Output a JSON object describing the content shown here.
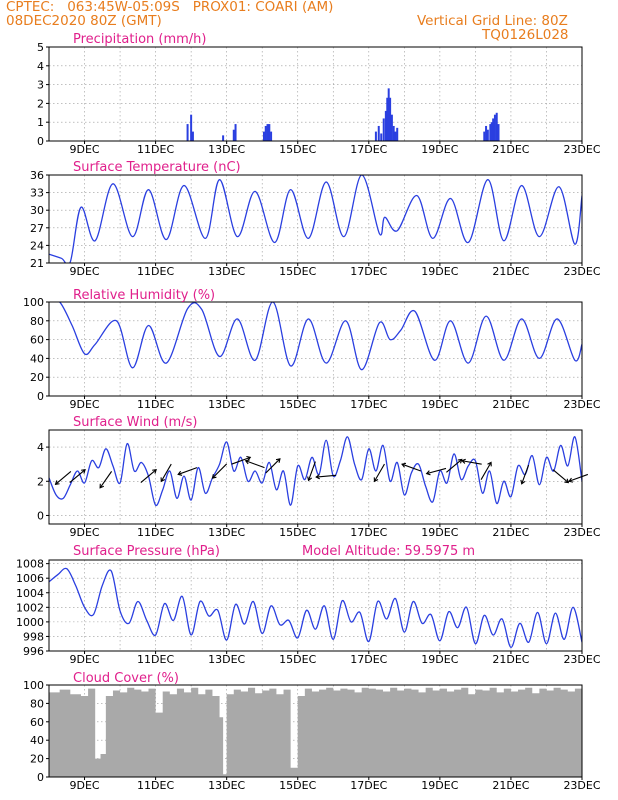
{
  "header": {
    "line1": "CPTEC:   063:45W-05:09S   PROX01: COARI (AM)",
    "line2": "08DEC2020 80Z (GMT)",
    "grid_note": "Vertical Grid Line: 80Z",
    "code": "TQ0126L028"
  },
  "x_ticks": [
    "9DEC",
    "11DEC",
    "13DEC",
    "15DEC",
    "17DEC",
    "19DEC",
    "21DEC",
    "23DEC"
  ],
  "colors": {
    "series": "#2a3fe0",
    "title": "#e0208c",
    "header": "#e87d1e",
    "cloud": "#a9a9a9",
    "wind_arrow": "#000000"
  },
  "chart_data": [
    {
      "id": "precipitation",
      "type": "bar",
      "title": "Precipitation (mm/h)",
      "ylim": [
        0,
        5
      ],
      "yticks": [
        0,
        1,
        2,
        3,
        4,
        5
      ],
      "x_range_days": [
        8.0,
        23.0
      ],
      "values": [
        [
          11.9,
          0.9
        ],
        [
          12.0,
          1.4
        ],
        [
          12.05,
          0.5
        ],
        [
          12.9,
          0.3
        ],
        [
          13.2,
          0.6
        ],
        [
          13.25,
          0.9
        ],
        [
          14.05,
          0.5
        ],
        [
          14.1,
          0.8
        ],
        [
          14.15,
          0.9
        ],
        [
          14.2,
          0.9
        ],
        [
          14.25,
          0.5
        ],
        [
          17.2,
          0.5
        ],
        [
          17.28,
          0.8
        ],
        [
          17.35,
          0.4
        ],
        [
          17.42,
          1.2
        ],
        [
          17.48,
          1.6
        ],
        [
          17.52,
          2.3
        ],
        [
          17.56,
          2.8
        ],
        [
          17.6,
          2.3
        ],
        [
          17.65,
          1.4
        ],
        [
          17.7,
          0.8
        ],
        [
          17.75,
          0.5
        ],
        [
          17.8,
          0.7
        ],
        [
          20.25,
          0.5
        ],
        [
          20.3,
          0.8
        ],
        [
          20.35,
          0.6
        ],
        [
          20.42,
          0.9
        ],
        [
          20.46,
          1.0
        ],
        [
          20.5,
          1.2
        ],
        [
          20.55,
          1.4
        ],
        [
          20.6,
          1.5
        ],
        [
          20.65,
          0.9
        ]
      ]
    },
    {
      "id": "temperature",
      "type": "line",
      "title": "Surface Temperature (nC)",
      "ylim": [
        21,
        36
      ],
      "yticks": [
        21,
        24,
        27,
        30,
        33,
        36
      ],
      "x": [
        8.0,
        8.35,
        8.6,
        8.9,
        9.3,
        9.8,
        10.35,
        10.8,
        11.3,
        11.8,
        12.4,
        12.8,
        13.3,
        13.8,
        14.35,
        14.8,
        15.3,
        15.8,
        16.3,
        16.8,
        17.3,
        17.45,
        17.8,
        18.35,
        18.8,
        19.3,
        19.8,
        20.35,
        20.8,
        21.3,
        21.8,
        22.35,
        22.8,
        23.0
      ],
      "y": [
        22.5,
        21.8,
        21.2,
        30.5,
        24.8,
        34.5,
        25.5,
        33.5,
        25.0,
        34.2,
        25.2,
        35.2,
        25.5,
        33.2,
        24.5,
        33.5,
        25.2,
        34.8,
        25.5,
        36.0,
        26.0,
        28.8,
        26.5,
        32.5,
        25.2,
        32.0,
        24.5,
        35.2,
        24.8,
        34.2,
        25.5,
        34.0,
        24.2,
        32.5
      ]
    },
    {
      "id": "humidity",
      "type": "line",
      "title": "Relative Humidity (%)",
      "ylim": [
        0,
        100
      ],
      "yticks": [
        0,
        20,
        40,
        60,
        80,
        100
      ],
      "x": [
        8.0,
        8.3,
        8.65,
        9.0,
        9.3,
        9.9,
        10.35,
        10.8,
        11.3,
        11.9,
        12.3,
        12.8,
        13.3,
        13.8,
        14.3,
        14.8,
        15.3,
        15.8,
        16.35,
        16.8,
        17.3,
        17.6,
        17.9,
        18.3,
        18.85,
        19.3,
        19.8,
        20.3,
        20.8,
        21.3,
        21.8,
        22.3,
        22.8,
        23.0
      ],
      "y": [
        100,
        100,
        75,
        45,
        55,
        80,
        30,
        75,
        35,
        93,
        92,
        42,
        82,
        38,
        100,
        32,
        82,
        35,
        80,
        28,
        78,
        60,
        70,
        90,
        38,
        80,
        35,
        85,
        38,
        82,
        40,
        82,
        38,
        55
      ]
    },
    {
      "id": "wind",
      "type": "line",
      "title": "Surface Wind (m/s)",
      "ylim": [
        -0.5,
        5.0
      ],
      "yticks": [
        0,
        2,
        4
      ],
      "x": [
        8.0,
        8.2,
        8.4,
        8.6,
        8.8,
        9.0,
        9.2,
        9.4,
        9.6,
        9.8,
        10.0,
        10.2,
        10.4,
        10.6,
        10.8,
        11.0,
        11.2,
        11.4,
        11.6,
        11.8,
        12.0,
        12.2,
        12.4,
        12.6,
        12.8,
        13.0,
        13.2,
        13.4,
        13.6,
        13.8,
        14.0,
        14.2,
        14.4,
        14.6,
        14.8,
        15.0,
        15.2,
        15.4,
        15.6,
        15.8,
        16.0,
        16.2,
        16.4,
        16.6,
        16.8,
        17.0,
        17.2,
        17.4,
        17.6,
        17.8,
        18.0,
        18.2,
        18.4,
        18.6,
        18.8,
        19.0,
        19.2,
        19.4,
        19.6,
        19.8,
        20.0,
        20.2,
        20.4,
        20.6,
        20.8,
        21.0,
        21.2,
        21.4,
        21.6,
        21.8,
        22.0,
        22.2,
        22.4,
        22.6,
        22.8,
        23.0
      ],
      "y": [
        2.2,
        1.2,
        1.0,
        1.8,
        2.6,
        1.9,
        3.2,
        2.8,
        3.9,
        2.9,
        1.9,
        4.2,
        2.6,
        3.1,
        2.3,
        0.6,
        1.5,
        2.6,
        1.0,
        2.3,
        0.9,
        2.8,
        1.3,
        2.2,
        3.0,
        4.3,
        2.6,
        3.4,
        2.0,
        2.6,
        1.9,
        3.1,
        1.5,
        2.6,
        0.6,
        2.9,
        2.1,
        3.4,
        2.4,
        4.4,
        2.3,
        3.2,
        4.6,
        3.0,
        2.1,
        3.9,
        2.6,
        4.1,
        2.0,
        3.1,
        1.2,
        2.5,
        3.0,
        1.7,
        0.8,
        2.6,
        1.9,
        3.6,
        2.1,
        2.9,
        3.2,
        1.3,
        2.6,
        0.7,
        2.0,
        1.1,
        2.9,
        2.4,
        3.5,
        1.8,
        3.4,
        2.6,
        4.1,
        2.9,
        4.6,
        2.0
      ],
      "arrows": [
        [
          8.4,
          2.2,
          220
        ],
        [
          8.8,
          2.3,
          40
        ],
        [
          9.6,
          2.1,
          235
        ],
        [
          10.8,
          2.3,
          40
        ],
        [
          11.3,
          2.5,
          240
        ],
        [
          11.9,
          2.6,
          200
        ],
        [
          12.8,
          2.6,
          225
        ],
        [
          13.4,
          3.2,
          20
        ],
        [
          13.8,
          3.0,
          160
        ],
        [
          14.3,
          2.9,
          45
        ],
        [
          15.4,
          2.6,
          250
        ],
        [
          15.8,
          2.3,
          185
        ],
        [
          17.3,
          2.5,
          240
        ],
        [
          18.2,
          2.8,
          160
        ],
        [
          18.9,
          2.6,
          195
        ],
        [
          19.4,
          2.9,
          40
        ],
        [
          19.9,
          3.1,
          170
        ],
        [
          20.3,
          2.6,
          60
        ],
        [
          21.4,
          2.4,
          250
        ],
        [
          22.4,
          2.3,
          320
        ],
        [
          22.9,
          2.2,
          200
        ]
      ]
    },
    {
      "id": "pressure",
      "type": "line",
      "title": "Surface Pressure (hPa)",
      "annotation": "Model Altitude: 59.5975 m",
      "ylim": [
        996,
        1008.5
      ],
      "yticks": [
        996,
        998,
        1000,
        1002,
        1004,
        1006,
        1008
      ],
      "x": [
        8.0,
        8.25,
        8.5,
        8.75,
        9.0,
        9.25,
        9.5,
        9.75,
        10.0,
        10.25,
        10.5,
        10.75,
        11.0,
        11.25,
        11.5,
        11.75,
        12.0,
        12.25,
        12.5,
        12.75,
        13.0,
        13.25,
        13.5,
        13.75,
        14.0,
        14.25,
        14.5,
        14.75,
        15.0,
        15.25,
        15.5,
        15.75,
        16.0,
        16.25,
        16.5,
        16.75,
        17.0,
        17.25,
        17.5,
        17.75,
        18.0,
        18.25,
        18.5,
        18.75,
        19.0,
        19.25,
        19.5,
        19.75,
        20.0,
        20.25,
        20.5,
        20.75,
        21.0,
        21.25,
        21.5,
        21.75,
        22.0,
        22.25,
        22.5,
        22.75,
        23.0
      ],
      "y": [
        1005.5,
        1006.5,
        1007.3,
        1005.0,
        1002.0,
        1001.0,
        1005.0,
        1007.0,
        1001.5,
        999.8,
        1002.8,
        1000.2,
        998.2,
        1002.5,
        1000.2,
        1003.5,
        998.2,
        1002.8,
        1000.8,
        1001.6,
        997.5,
        1002.4,
        999.7,
        1002.8,
        998.4,
        1002.2,
        999.6,
        1000.2,
        997.8,
        1001.6,
        999.0,
        1002.2,
        997.6,
        1002.9,
        1000.0,
        1001.3,
        997.3,
        1002.8,
        1000.4,
        1003.2,
        998.6,
        1002.8,
        999.8,
        1001.0,
        997.4,
        1001.4,
        999.2,
        1002.0,
        997.0,
        1000.9,
        998.2,
        1000.4,
        996.5,
        999.8,
        997.2,
        1001.3,
        997.0,
        1001.2,
        997.6,
        1002.0,
        997.2
      ]
    },
    {
      "id": "cloud",
      "type": "area",
      "title": "Cloud Cover (%)",
      "ylim": [
        0,
        100
      ],
      "yticks": [
        0,
        20,
        40,
        60,
        80,
        100
      ],
      "x": [
        8.0,
        8.3,
        8.6,
        8.9,
        9.1,
        9.3,
        9.45,
        9.6,
        9.8,
        10.0,
        10.2,
        10.4,
        10.6,
        10.8,
        11.0,
        11.2,
        11.4,
        11.6,
        11.8,
        12.0,
        12.2,
        12.4,
        12.6,
        12.8,
        12.9,
        13.0,
        13.2,
        13.4,
        13.6,
        13.8,
        14.0,
        14.2,
        14.4,
        14.6,
        14.8,
        15.0,
        15.2,
        15.4,
        15.6,
        15.8,
        16.0,
        16.2,
        16.4,
        16.6,
        16.8,
        17.0,
        17.2,
        17.4,
        17.6,
        17.8,
        18.0,
        18.2,
        18.4,
        18.6,
        18.8,
        19.0,
        19.2,
        19.4,
        19.6,
        19.8,
        20.0,
        20.2,
        20.4,
        20.6,
        20.8,
        21.0,
        21.2,
        21.4,
        21.6,
        21.8,
        22.0,
        22.2,
        22.4,
        22.6,
        22.8,
        23.0
      ],
      "y": [
        92,
        95,
        90,
        88,
        96,
        20,
        25,
        88,
        94,
        92,
        97,
        95,
        93,
        96,
        70,
        93,
        90,
        96,
        92,
        97,
        90,
        95,
        88,
        65,
        3,
        90,
        95,
        93,
        97,
        91,
        94,
        96,
        90,
        95,
        10,
        88,
        96,
        93,
        95,
        97,
        94,
        96,
        95,
        92,
        97,
        96,
        95,
        93,
        97,
        94,
        96,
        95,
        92,
        97,
        94,
        96,
        93,
        95,
        97,
        90,
        95,
        94,
        97,
        92,
        96,
        93,
        95,
        97,
        91,
        96,
        94,
        97,
        95,
        93,
        96,
        97
      ]
    }
  ]
}
